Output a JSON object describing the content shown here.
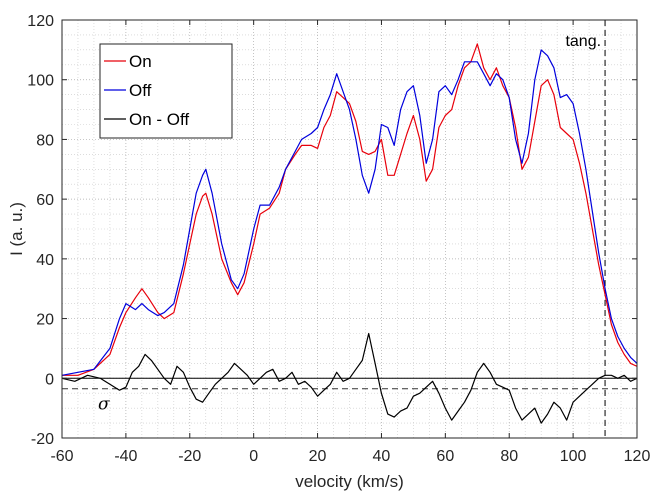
{
  "chart_data": {
    "type": "line",
    "title": "",
    "xlabel": "velocity (km/s)",
    "ylabel": "I (a. u.)",
    "xlim": [
      -60,
      120
    ],
    "ylim": [
      -20,
      120
    ],
    "x_ticks": [
      -60,
      -40,
      -20,
      0,
      20,
      40,
      60,
      80,
      100,
      120
    ],
    "y_ticks": [
      -20,
      0,
      20,
      40,
      60,
      80,
      100,
      120
    ],
    "grid": "minor dotted",
    "legend_position": "top-left",
    "series": [
      {
        "name": "On",
        "color": "#e8000b",
        "x": [
          -60,
          -55,
          -50,
          -45,
          -42,
          -40,
          -37,
          -35,
          -33,
          -30,
          -28,
          -25,
          -22,
          -20,
          -18,
          -16,
          -15,
          -13,
          -10,
          -7,
          -5,
          -3,
          0,
          2,
          5,
          8,
          10,
          13,
          15,
          18,
          20,
          22,
          24,
          26,
          28,
          30,
          32,
          34,
          36,
          38,
          40,
          42,
          44,
          46,
          48,
          50,
          52,
          54,
          56,
          58,
          60,
          62,
          64,
          66,
          68,
          70,
          72,
          74,
          76,
          78,
          80,
          82,
          84,
          86,
          88,
          90,
          92,
          94,
          96,
          98,
          100,
          102,
          104,
          106,
          108,
          110,
          112,
          114,
          116,
          118,
          120
        ],
        "values": [
          1,
          1,
          3,
          8,
          17,
          22,
          27,
          30,
          27,
          22,
          20,
          22,
          35,
          45,
          55,
          61,
          62,
          55,
          40,
          32,
          28,
          32,
          45,
          55,
          57,
          62,
          70,
          75,
          78,
          78,
          77,
          84,
          88,
          96,
          94,
          92,
          86,
          76,
          75,
          76,
          80,
          68,
          68,
          75,
          82,
          88,
          80,
          66,
          70,
          84,
          88,
          90,
          98,
          104,
          106,
          112,
          104,
          100,
          104,
          98,
          94,
          84,
          70,
          74,
          86,
          98,
          100,
          95,
          84,
          82,
          80,
          72,
          62,
          50,
          38,
          28,
          18,
          12,
          8,
          5,
          4
        ]
      },
      {
        "name": "Off",
        "color": "#0000dd",
        "x": [
          -60,
          -55,
          -50,
          -45,
          -42,
          -40,
          -37,
          -35,
          -33,
          -30,
          -28,
          -25,
          -22,
          -20,
          -18,
          -16,
          -15,
          -13,
          -10,
          -7,
          -5,
          -3,
          0,
          2,
          5,
          8,
          10,
          13,
          15,
          18,
          20,
          22,
          24,
          26,
          28,
          30,
          32,
          34,
          36,
          38,
          40,
          42,
          44,
          46,
          48,
          50,
          52,
          54,
          56,
          58,
          60,
          62,
          64,
          66,
          68,
          70,
          72,
          74,
          76,
          78,
          80,
          82,
          84,
          86,
          88,
          90,
          92,
          94,
          96,
          98,
          100,
          102,
          104,
          106,
          108,
          110,
          112,
          114,
          116,
          118,
          120
        ],
        "values": [
          1,
          2,
          3,
          10,
          20,
          25,
          23,
          25,
          23,
          21,
          22,
          25,
          38,
          50,
          62,
          68,
          70,
          62,
          45,
          33,
          30,
          35,
          50,
          58,
          58,
          64,
          70,
          76,
          80,
          82,
          84,
          90,
          95,
          102,
          96,
          90,
          80,
          68,
          62,
          70,
          85,
          84,
          78,
          90,
          96,
          98,
          88,
          72,
          80,
          96,
          98,
          95,
          100,
          106,
          106,
          106,
          102,
          98,
          102,
          100,
          94,
          80,
          72,
          82,
          100,
          110,
          108,
          104,
          94,
          95,
          92,
          82,
          70,
          56,
          42,
          30,
          20,
          14,
          10,
          7,
          5
        ]
      },
      {
        "name": "On - Off",
        "color": "#000000",
        "x": [
          -60,
          -56,
          -52,
          -48,
          -45,
          -42,
          -40,
          -38,
          -36,
          -34,
          -32,
          -30,
          -28,
          -26,
          -24,
          -22,
          -20,
          -18,
          -16,
          -14,
          -12,
          -10,
          -8,
          -6,
          -4,
          -2,
          0,
          2,
          4,
          6,
          8,
          10,
          12,
          14,
          16,
          18,
          20,
          22,
          24,
          26,
          28,
          30,
          32,
          34,
          36,
          38,
          40,
          42,
          44,
          46,
          48,
          50,
          52,
          54,
          56,
          58,
          60,
          62,
          64,
          66,
          68,
          70,
          72,
          74,
          76,
          78,
          80,
          82,
          84,
          86,
          88,
          90,
          92,
          94,
          96,
          98,
          100,
          102,
          104,
          106,
          108,
          110,
          112,
          114,
          116,
          118,
          120
        ],
        "values": [
          0,
          -1,
          1,
          0,
          -2,
          -4,
          -3,
          2,
          4,
          8,
          6,
          3,
          0,
          -2,
          4,
          2,
          -3,
          -7,
          -8,
          -5,
          -2,
          0,
          2,
          5,
          3,
          1,
          -2,
          0,
          2,
          3,
          -1,
          0,
          2,
          -2,
          -1,
          -3,
          -6,
          -4,
          -2,
          2,
          -1,
          0,
          3,
          6,
          15,
          5,
          -5,
          -12,
          -13,
          -11,
          -10,
          -6,
          -5,
          -3,
          -1,
          -5,
          -10,
          -14,
          -11,
          -8,
          -4,
          2,
          5,
          2,
          -2,
          -3,
          -4,
          -10,
          -14,
          -12,
          -10,
          -15,
          -12,
          -8,
          -10,
          -14,
          -8,
          -6,
          -4,
          -2,
          0,
          1,
          1,
          0,
          1,
          -1,
          0
        ]
      }
    ],
    "reference_lines": [
      {
        "type": "vertical",
        "x": 110,
        "style": "dashed",
        "label": "tang."
      },
      {
        "type": "horizontal",
        "y": 0,
        "style": "solid",
        "label": ""
      },
      {
        "type": "horizontal",
        "y": -3.5,
        "style": "dashed",
        "label": "σ"
      }
    ]
  }
}
